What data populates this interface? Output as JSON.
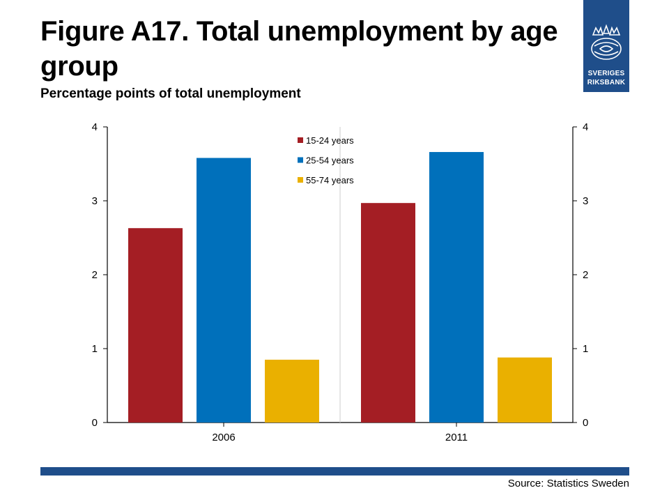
{
  "header": {
    "title": "Figure A17. Total unemployment by age group",
    "subtitle": "Percentage points of total unemployment"
  },
  "logo": {
    "line1": "SVERIGES",
    "line2": "RIKSBANK",
    "icon": "crown-emblem-icon",
    "color": "#1f4e8a"
  },
  "footer": {
    "source": "Source: Statistics Sweden",
    "bar_color": "#1f4e8a"
  },
  "chart_data": {
    "type": "bar",
    "title": "",
    "xlabel": "",
    "ylabel": "",
    "categories": [
      "2006",
      "2011"
    ],
    "series": [
      {
        "name": "15-24 years",
        "color": "#a41e24",
        "values": [
          2.63,
          2.97
        ]
      },
      {
        "name": "25-54 years",
        "color": "#0070bb",
        "values": [
          3.58,
          3.66
        ]
      },
      {
        "name": "55-74 years",
        "color": "#eab000",
        "values": [
          0.85,
          0.88
        ]
      }
    ],
    "ylim": [
      0,
      4
    ],
    "yticks": [
      0,
      1,
      2,
      3,
      4
    ],
    "secondary_axis": true,
    "grid": false,
    "legend": "top-center"
  }
}
